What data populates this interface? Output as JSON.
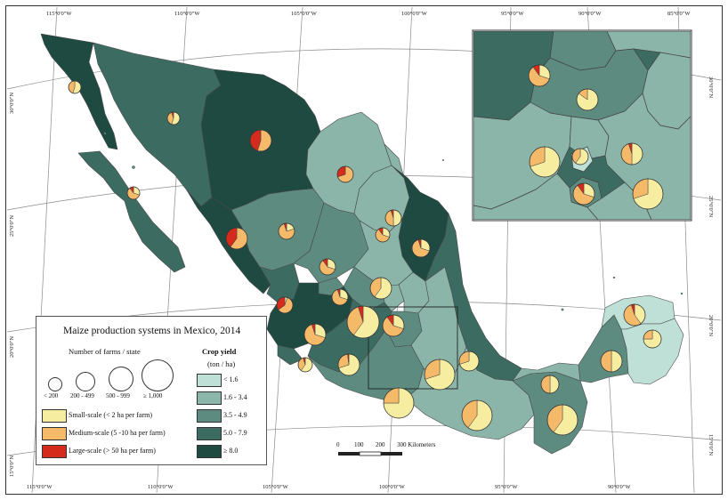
{
  "map": {
    "title": "Maize production systems in Mexico, 2014",
    "farms_heading": "Number of farms / state",
    "farm_sizes": [
      "< 200",
      "200 - 499",
      "500 - 999",
      "≥ 1,000"
    ],
    "scale_legend": [
      {
        "label": "Small-scale (< 2 ha per farm)",
        "color": "#f7eda0"
      },
      {
        "label": "Medium-scale (5 -10 ha per farm)",
        "color": "#f5b96a"
      },
      {
        "label": "Large-scale (> 50 ha per farm)",
        "color": "#d42b1c"
      }
    ],
    "yield_heading_1": "Crop yield",
    "yield_heading_2": "(ton / ha)",
    "yield_classes": [
      {
        "label": "< 1.6",
        "color": "#bfe0d6"
      },
      {
        "label": "1.6 - 3.4",
        "color": "#8bb5a9"
      },
      {
        "label": "3.5 - 4.9",
        "color": "#5e8b80"
      },
      {
        "label": "5.0 - 7.9",
        "color": "#3c6b62"
      },
      {
        "label": "≥ 8.0",
        "color": "#1f4a42"
      }
    ],
    "scale_bar": {
      "ticks": [
        "0",
        "100",
        "200",
        "300 Kilometers"
      ]
    },
    "coords_top": [
      "115°0'0\"W",
      "110°0'0\"W",
      "105°0'0\"W",
      "100°0'0\"W",
      "95°0'0\"W",
      "90°0'0\"W",
      "85°0'0\"W"
    ],
    "coords_bottom": [
      "115°0'0\"W",
      "110°0'0\"W",
      "105°0'0\"W",
      "100°0'0\"W",
      "95°0'0\"W",
      "90°0'0\"W"
    ],
    "coords_left": [
      "30°0'0\"N",
      "25°0'0\"N",
      "20°0'0\"N",
      "15°0'0\"N"
    ],
    "coords_right": [
      "30°0'0\"N",
      "25°0'0\"N",
      "20°0'0\"N",
      "15°0'0\"N"
    ],
    "pies": [
      {
        "small": 0.55,
        "medium": 0.45,
        "large": 0.0
      },
      {
        "small": 0.55,
        "medium": 0.4,
        "large": 0.05
      },
      {
        "small": 0.0,
        "medium": 0.55,
        "large": 0.45
      },
      {
        "small": 0.0,
        "medium": 0.7,
        "large": 0.3
      },
      {
        "small": 0.3,
        "medium": 0.6,
        "large": 0.1
      },
      {
        "small": 0.2,
        "medium": 0.7,
        "large": 0.1
      },
      {
        "small": 0.5,
        "medium": 0.45,
        "large": 0.05
      },
      {
        "small": 0.0,
        "medium": 0.6,
        "large": 0.4
      },
      {
        "small": 0.2,
        "medium": 0.75,
        "large": 0.05
      },
      {
        "small": 0.3,
        "medium": 0.65,
        "large": 0.05
      },
      {
        "small": 0.3,
        "medium": 0.6,
        "large": 0.1
      },
      {
        "small": 0.3,
        "medium": 0.6,
        "large": 0.1
      },
      {
        "small": 0.6,
        "medium": 0.4,
        "large": 0.0
      },
      {
        "small": 0.3,
        "medium": 0.65,
        "large": 0.05
      },
      {
        "small": 0.05,
        "medium": 0.6,
        "large": 0.35
      },
      {
        "small": 0.3,
        "medium": 0.65,
        "large": 0.05
      },
      {
        "small": 0.6,
        "medium": 0.35,
        "large": 0.05
      },
      {
        "small": 0.3,
        "medium": 0.6,
        "large": 0.1
      },
      {
        "small": 0.6,
        "medium": 0.35,
        "large": 0.05
      },
      {
        "small": 0.7,
        "medium": 0.28,
        "large": 0.02
      },
      {
        "small": 0.75,
        "medium": 0.25,
        "large": 0.0
      },
      {
        "small": 0.7,
        "medium": 0.3,
        "large": 0.0
      },
      {
        "small": 0.7,
        "medium": 0.3,
        "large": 0.0
      },
      {
        "small": 0.6,
        "medium": 0.4,
        "large": 0.0
      },
      {
        "small": 0.6,
        "medium": 0.4,
        "large": 0.0
      },
      {
        "small": 0.5,
        "medium": 0.5,
        "large": 0.0
      },
      {
        "small": 0.5,
        "medium": 0.5,
        "large": 0.0
      },
      {
        "small": 0.4,
        "medium": 0.55,
        "large": 0.05
      },
      {
        "small": 0.75,
        "medium": 0.25,
        "large": 0.0
      },
      {
        "small": 0.7,
        "medium": 0.3,
        "large": 0.0
      },
      {
        "small": 0.3,
        "medium": 0.6,
        "large": 0.1
      },
      {
        "small": 0.85,
        "medium": 0.15,
        "large": 0.0
      },
      {
        "small": 0.5,
        "medium": 0.45,
        "large": 0.05
      },
      {
        "small": 0.6,
        "medium": 0.4,
        "large": 0.0
      },
      {
        "small": 0.6,
        "medium": 0.4,
        "large": 0.0
      },
      {
        "small": 0.7,
        "medium": 0.3,
        "large": 0.0
      },
      {
        "small": 0.3,
        "medium": 0.6,
        "large": 0.1
      },
      {
        "small": 0.7,
        "medium": 0.3,
        "large": 0.0
      },
      {
        "small": 0.75,
        "medium": 0.25,
        "large": 0.0
      }
    ]
  }
}
